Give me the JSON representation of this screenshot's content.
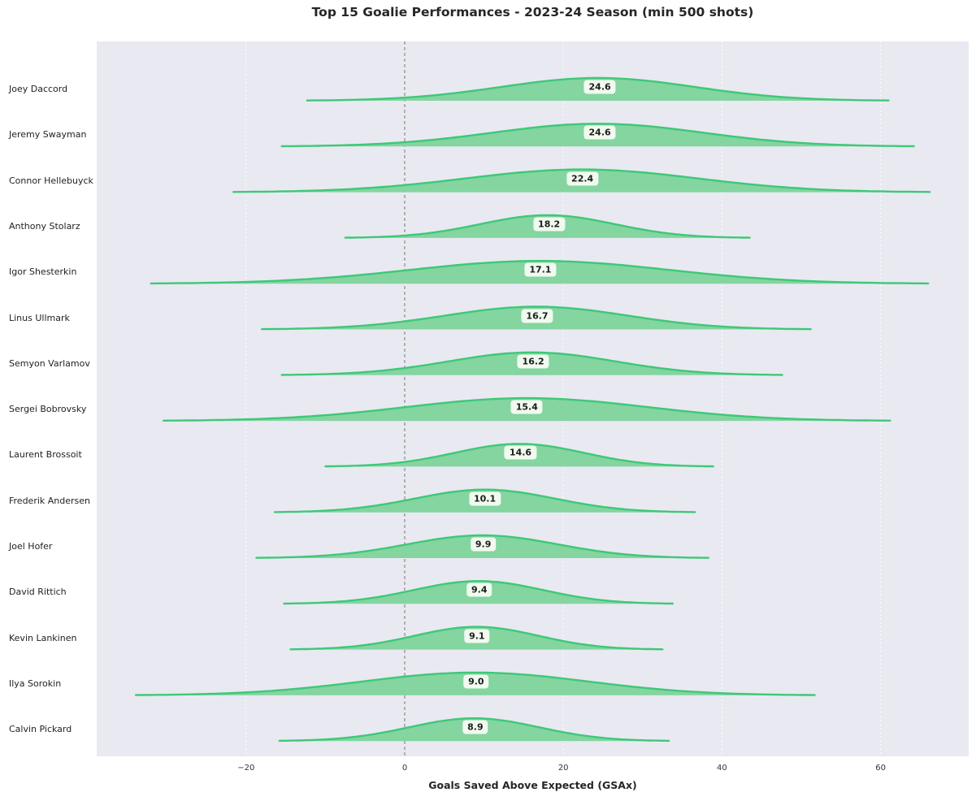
{
  "title": "Top 15 Goalie Performances - 2023-24 Season (min 500 shots)",
  "x_axis": {
    "label": "Goals Saved Above Expected (GSAx)",
    "ticks": [
      {
        "value": -20,
        "label": "−20"
      },
      {
        "value": 0,
        "label": "0"
      },
      {
        "value": 20,
        "label": "20"
      },
      {
        "value": 40,
        "label": "40"
      },
      {
        "value": 60,
        "label": "60"
      }
    ]
  },
  "colors": {
    "plot_background": "#e9e9f2",
    "curve_fill": "#84d5a0",
    "curve_stroke": "#3ec878",
    "zero_line": "#8a8a8a",
    "grid_line": "#ffffff",
    "badge_background": "#f1faef",
    "text": "#262626"
  },
  "chart_data": {
    "type": "area",
    "variant": "ridgeline-kde",
    "title": "Top 15 Goalie Performances - 2023-24 Season (min 500 shots)",
    "xlabel": "Goals Saved Above Expected (GSAx)",
    "xlim": [
      -39,
      71
    ],
    "x_ticks": [
      -20,
      0,
      20,
      40,
      60
    ],
    "zero_reference_line": 0,
    "grid": "vertical-white-dotted",
    "legend": "none",
    "series": [
      {
        "name": "Joey Daccord",
        "gsax": 24.6,
        "tail_min": -12.3,
        "tail_max": 61.0
      },
      {
        "name": "Jeremy Swayman",
        "gsax": 24.6,
        "tail_min": -15.5,
        "tail_max": 64.2
      },
      {
        "name": "Connor Hellebuyck",
        "gsax": 22.4,
        "tail_min": -21.6,
        "tail_max": 66.2
      },
      {
        "name": "Anthony Stolarz",
        "gsax": 18.2,
        "tail_min": -7.5,
        "tail_max": 43.5
      },
      {
        "name": "Igor Shesterkin",
        "gsax": 17.1,
        "tail_min": -32.0,
        "tail_max": 66.0
      },
      {
        "name": "Linus Ullmark",
        "gsax": 16.7,
        "tail_min": -18.0,
        "tail_max": 51.2
      },
      {
        "name": "Semyon Varlamov",
        "gsax": 16.2,
        "tail_min": -15.5,
        "tail_max": 47.6
      },
      {
        "name": "Sergei Bobrovsky",
        "gsax": 15.4,
        "tail_min": -30.4,
        "tail_max": 61.2
      },
      {
        "name": "Laurent Brossoit",
        "gsax": 14.6,
        "tail_min": -10.0,
        "tail_max": 38.9
      },
      {
        "name": "Frederik Andersen",
        "gsax": 10.1,
        "tail_min": -16.4,
        "tail_max": 36.6
      },
      {
        "name": "Joel Hofer",
        "gsax": 9.9,
        "tail_min": -18.7,
        "tail_max": 38.3
      },
      {
        "name": "David Rittich",
        "gsax": 9.4,
        "tail_min": -15.2,
        "tail_max": 33.8
      },
      {
        "name": "Kevin Lankinen",
        "gsax": 9.1,
        "tail_min": -14.4,
        "tail_max": 32.5
      },
      {
        "name": "Ilya Sorokin",
        "gsax": 9.0,
        "tail_min": -33.9,
        "tail_max": 51.7
      },
      {
        "name": "Calvin Pickard",
        "gsax": 8.9,
        "tail_min": -15.8,
        "tail_max": 33.3
      }
    ]
  }
}
